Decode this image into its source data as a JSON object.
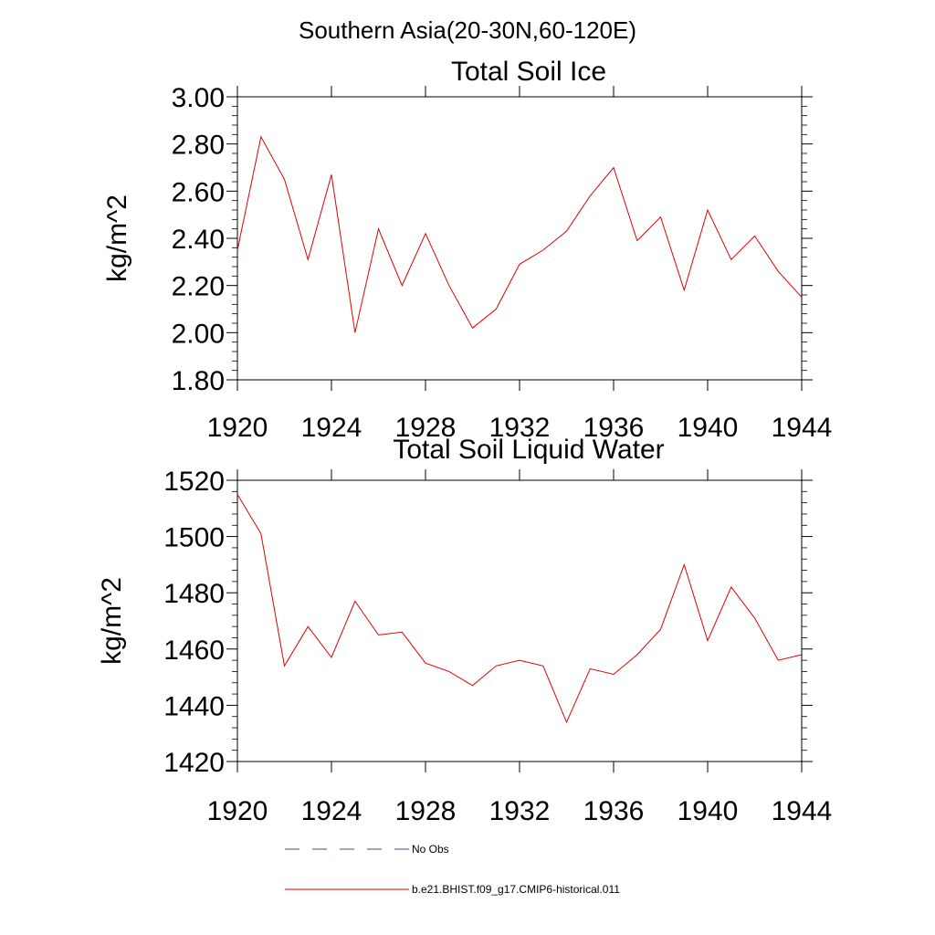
{
  "page_title": "Southern Asia(20-30N,60-120E)",
  "colors": {
    "model": "#e00000",
    "obs": "#3a4f86",
    "axis": "#000000"
  },
  "legend": {
    "obs_label": "No Obs",
    "model_label": "b.e21.BHIST.f09_g17.CMIP6-historical.011"
  },
  "chart_data": [
    {
      "type": "line",
      "title": "Total Soil Ice",
      "xlabel": "",
      "ylabel": "kg/m^2",
      "xlim": [
        1920,
        1944
      ],
      "ylim": [
        1.8,
        3.0
      ],
      "xticks": [
        1920,
        1924,
        1928,
        1932,
        1936,
        1940,
        1944
      ],
      "xtick_labels": [
        "1920",
        "1924",
        "1928",
        "1932",
        "1936",
        "1940",
        "1944"
      ],
      "yticks": [
        1.8,
        2.0,
        2.2,
        2.4,
        2.6,
        2.8,
        3.0
      ],
      "ytick_labels": [
        "1.80",
        "2.00",
        "2.20",
        "2.40",
        "2.60",
        "2.80",
        "3.00"
      ],
      "grid": false,
      "series": [
        {
          "name": "b.e21.BHIST.f09_g17.CMIP6-historical.011",
          "x": [
            1920,
            1921,
            1922,
            1923,
            1924,
            1925,
            1926,
            1927,
            1928,
            1929,
            1930,
            1931,
            1932,
            1933,
            1934,
            1935,
            1936,
            1937,
            1938,
            1939,
            1940,
            1941,
            1942,
            1943,
            1944
          ],
          "values": [
            2.35,
            2.83,
            2.65,
            2.31,
            2.67,
            2.0,
            2.44,
            2.2,
            2.42,
            2.2,
            2.02,
            2.1,
            2.29,
            2.35,
            2.43,
            2.58,
            2.7,
            2.39,
            2.49,
            2.18,
            2.52,
            2.31,
            2.41,
            2.26,
            2.15
          ]
        }
      ]
    },
    {
      "type": "line",
      "title": "Total Soil Liquid Water",
      "xlabel": "",
      "ylabel": "kg/m^2",
      "xlim": [
        1920,
        1944
      ],
      "ylim": [
        1420,
        1520
      ],
      "xticks": [
        1920,
        1924,
        1928,
        1932,
        1936,
        1940,
        1944
      ],
      "xtick_labels": [
        "1920",
        "1924",
        "1928",
        "1932",
        "1936",
        "1940",
        "1944"
      ],
      "yticks": [
        1420,
        1440,
        1460,
        1480,
        1500,
        1520
      ],
      "ytick_labels": [
        "1420",
        "1440",
        "1460",
        "1480",
        "1500",
        "1520"
      ],
      "grid": false,
      "series": [
        {
          "name": "b.e21.BHIST.f09_g17.CMIP6-historical.011",
          "x": [
            1920,
            1921,
            1922,
            1923,
            1924,
            1925,
            1926,
            1927,
            1928,
            1929,
            1930,
            1931,
            1932,
            1933,
            1934,
            1935,
            1936,
            1937,
            1938,
            1939,
            1940,
            1941,
            1942,
            1943,
            1944
          ],
          "values": [
            1515,
            1501,
            1454,
            1468,
            1457,
            1477,
            1465,
            1466,
            1455,
            1452,
            1447,
            1454,
            1456,
            1454,
            1434,
            1453,
            1451,
            1458,
            1467,
            1490,
            1463,
            1482,
            1471,
            1456,
            1458
          ]
        }
      ]
    }
  ]
}
